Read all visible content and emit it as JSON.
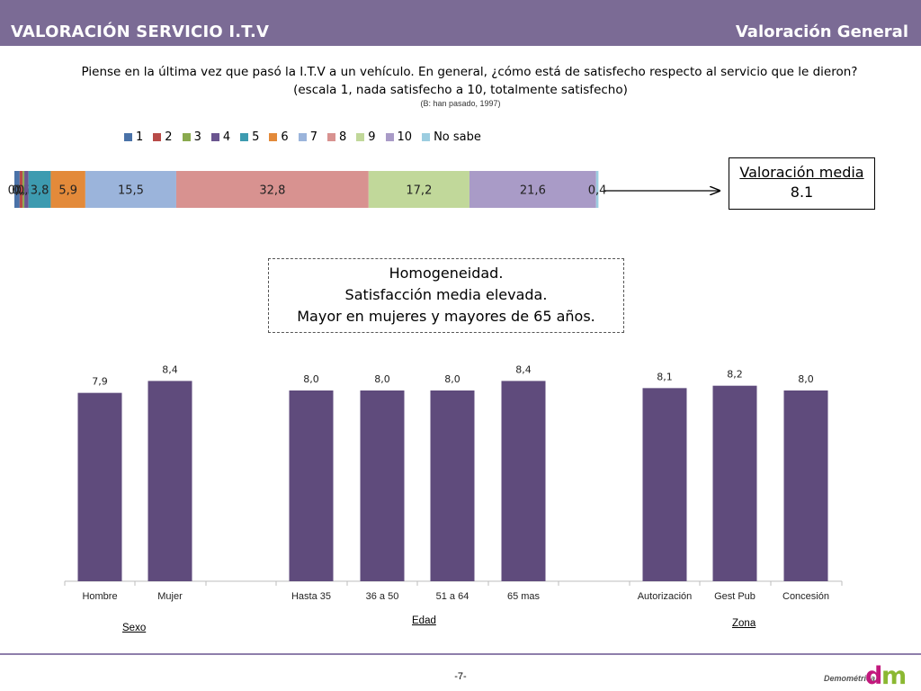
{
  "header": {
    "title": "VALORACIÓN  SERVICIO  I.T.V",
    "section": "Valoración General"
  },
  "question": {
    "line1": "Piense en la última vez que pasó la I.T.V a un vehículo. En general, ¿cómo está de satisfecho respecto al servicio que le dieron?",
    "line2": "(escala 1, nada satisfecho a 10, totalmente satisfecho)",
    "base": "(B: han pasado, 1997)"
  },
  "media_box": {
    "label": "Valoración media",
    "value": "8.1"
  },
  "homogeneidad": {
    "line1": "Homogeneidad.",
    "line2": "Satisfacción media elevada.",
    "line3": "Mayor en mujeres y mayores de 65 años."
  },
  "groups": {
    "sexo": "Sexo",
    "edad": "Edad",
    "zona": "Zona"
  },
  "footer": {
    "page": "-7-",
    "logo_text": "Demométrica"
  },
  "colors": {
    "header": "#7b6b95",
    "bar": "#5f4b7c",
    "footer_line": "#8e7eab"
  },
  "chart_data": [
    {
      "type": "bar",
      "orientation": "horizontal-stacked",
      "legend_position": "top",
      "categories": [
        "1",
        "2",
        "3",
        "4",
        "5",
        "6",
        "7",
        "8",
        "9",
        "10",
        "No sabe"
      ],
      "values": [
        0.9,
        0.5,
        0.3,
        0.7,
        3.8,
        5.9,
        15.5,
        32.8,
        17.2,
        21.6,
        0.4
      ],
      "labels": [
        "0,9",
        "0,5",
        "0,3",
        "0,7",
        "3,8",
        "5,9",
        "15,5",
        "32,8",
        "17,2",
        "21,6",
        "0,4"
      ],
      "colors": [
        "#4a72a8",
        "#b84b48",
        "#8aaa4e",
        "#6b5690",
        "#3d9bb0",
        "#e38a3a",
        "#9bb4db",
        "#d89290",
        "#c1d89a",
        "#a99bc7",
        "#9ccde0"
      ],
      "xlim": [
        0,
        100
      ]
    },
    {
      "type": "bar",
      "categories": [
        "Hombre",
        "Mujer",
        "Hasta 35",
        "36 a 50",
        "51 a 64",
        "65 mas",
        "Autorización",
        "Gest Pub",
        "Concesión"
      ],
      "values": [
        7.9,
        8.4,
        8.0,
        8.0,
        8.0,
        8.4,
        8.1,
        8.2,
        8.0
      ],
      "labels": [
        "7,9",
        "8,4",
        "8,0",
        "8,0",
        "8,0",
        "8,4",
        "8,1",
        "8,2",
        "8,0"
      ],
      "groups": [
        "Sexo",
        "Sexo",
        "Edad",
        "Edad",
        "Edad",
        "Edad",
        "Zona",
        "Zona",
        "Zona"
      ],
      "ylim": [
        0,
        10
      ]
    }
  ]
}
